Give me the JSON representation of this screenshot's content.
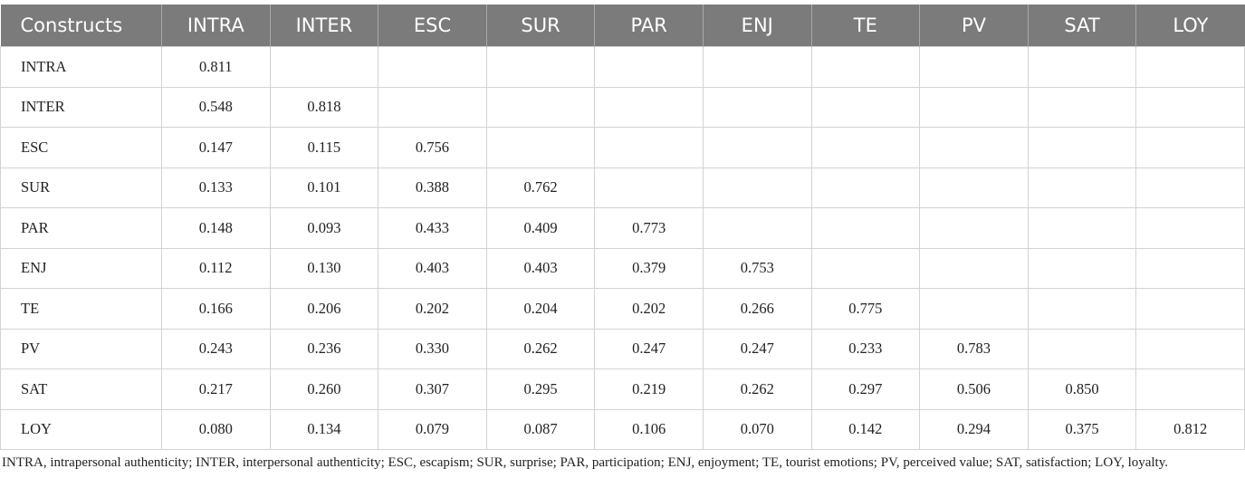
{
  "table": {
    "header": [
      "Constructs",
      "INTRA",
      "INTER",
      "ESC",
      "SUR",
      "PAR",
      "ENJ",
      "TE",
      "PV",
      "SAT",
      "LOY"
    ],
    "rows": [
      [
        "INTRA",
        "0.811"
      ],
      [
        "INTER",
        "0.548",
        "0.818"
      ],
      [
        "ESC",
        "0.147",
        "0.115",
        "0.756"
      ],
      [
        "SUR",
        "0.133",
        "0.101",
        "0.388",
        "0.762"
      ],
      [
        "PAR",
        "0.148",
        "0.093",
        "0.433",
        "0.409",
        "0.773"
      ],
      [
        "ENJ",
        "0.112",
        "0.130",
        "0.403",
        "0.403",
        "0.379",
        "0.753"
      ],
      [
        "TE",
        "0.166",
        "0.206",
        "0.202",
        "0.204",
        "0.202",
        "0.266",
        "0.775"
      ],
      [
        "PV",
        "0.243",
        "0.236",
        "0.330",
        "0.262",
        "0.247",
        "0.247",
        "0.233",
        "0.783"
      ],
      [
        "SAT",
        "0.217",
        "0.260",
        "0.307",
        "0.295",
        "0.219",
        "0.262",
        "0.297",
        "0.506",
        "0.850"
      ],
      [
        "LOY",
        "0.080",
        "0.134",
        "0.079",
        "0.087",
        "0.106",
        "0.070",
        "0.142",
        "0.294",
        "0.375",
        "0.812"
      ]
    ],
    "footnote": "INTRA, intrapersonal authenticity; INTER, interpersonal authenticity; ESC, escapism; SUR, surprise; PAR, participation; ENJ, enjoyment; TE, tourist emotions; PV, perceived value; SAT, satisfaction; LOY, loyalty."
  }
}
